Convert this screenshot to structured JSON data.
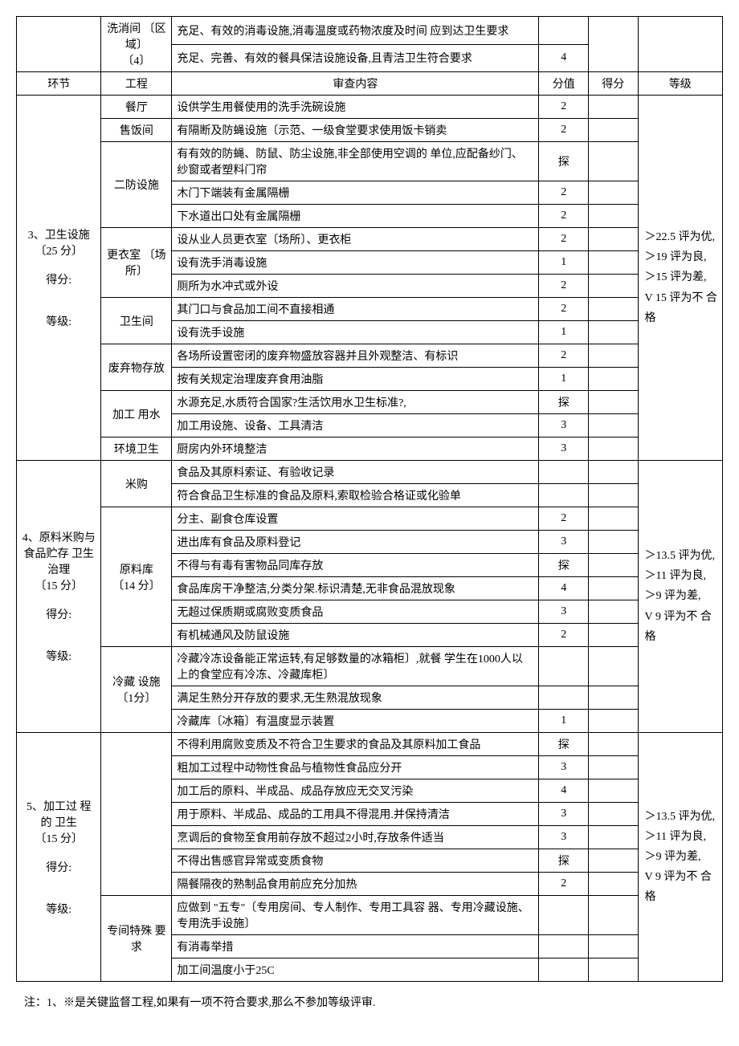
{
  "header": {
    "section": "环节",
    "item": "工程",
    "content": "审查内容",
    "score": "分值",
    "got": "得分",
    "grade": "等级"
  },
  "pre_rows": [
    {
      "item": "洗消间 〔区域〕\n〔4〕",
      "content": "充足、有效的消毒设施,消毒温度或药物浓度及时间 应到达卫生要求",
      "score": ""
    },
    {
      "content": "充足、完善、有效的餐具保洁设施设备,且青洁卫生符合要求",
      "score": "4"
    }
  ],
  "sections": [
    {
      "label": "3、卫生设施\n〔25 分〕\n\n得分:\n\n\n等级:",
      "grade": "＞22.5 评为优,\n＞19 评为良,\n＞15 评为差,\nV 15 评为不 合格",
      "groups": [
        {
          "item": "餐厅",
          "rows": [
            {
              "content": "设供学生用餐使用的洗手洗碗设施",
              "score": "2"
            }
          ]
        },
        {
          "item": "售饭间",
          "rows": [
            {
              "content": "有隔断及防蝇设施〔示范、一级食堂要求使用饭卡销卖",
              "score": "2"
            }
          ]
        },
        {
          "item": "二防设施",
          "rows": [
            {
              "content": "有有效的防蝇、防鼠、防尘设施,非全部使用空调的 单位,应配备纱门、纱窗或者塑料门帘",
              "score": "探"
            },
            {
              "content": "木门下端装有金属隔栅",
              "score": "2"
            },
            {
              "content": "下水道出口处有金属隔栅",
              "score": "2"
            }
          ]
        },
        {
          "item": "更衣室 〔场所〕",
          "rows": [
            {
              "content": "设从业人员更衣室〔场所〕、更衣柜",
              "score": "2"
            },
            {
              "content": "设有洗手消毒设施",
              "score": "1"
            },
            {
              "content": "厕所为水冲式或外设",
              "score": "2"
            }
          ]
        },
        {
          "item": "卫生间",
          "rows": [
            {
              "content": "其门口与食品加工间不直接相通",
              "score": "2"
            },
            {
              "content": "设有洗手设施",
              "score": "1"
            }
          ]
        },
        {
          "item": "废弃物存放",
          "rows": [
            {
              "content": "各场所设置密闭的废弃物盛放容器并且外观整洁、有标识",
              "score": "2"
            },
            {
              "content": "按有关规定治理废弃食用油脂",
              "score": "1"
            }
          ]
        },
        {
          "item": "加工 用水",
          "rows": [
            {
              "content": "水源充足,水质符合国家?生活饮用水卫生标准?,",
              "score": "探"
            },
            {
              "content": "加工用设施、设备、工具清洁",
              "score": "3"
            }
          ]
        },
        {
          "item": "环境卫生",
          "rows": [
            {
              "content": "厨房内外环境整洁",
              "score": "3"
            }
          ]
        }
      ]
    },
    {
      "label": "4、原料米购与 食品贮存 卫生治理\n〔15 分〕\n\n得分:\n\n\n等级:",
      "grade": "＞13.5 评为优,\n＞11 评为良,\n＞9 评为差,\nV 9 评为不 合格",
      "groups": [
        {
          "item": "米购",
          "rows": [
            {
              "content": "食品及其原料索证、有验收记录",
              "score": ""
            },
            {
              "content": "符合食品卫生标准的食品及原料,索取检验合格证或化验单",
              "score": ""
            }
          ]
        },
        {
          "item": "原料库\n〔14 分〕",
          "rows": [
            {
              "content": "分主、副食仓库设置",
              "score": "2"
            },
            {
              "content": "进出库有食品及原料登记",
              "score": "3"
            },
            {
              "content": "不得与有毒有害物品同库存放",
              "score": "探"
            },
            {
              "content": "食品库房干净整洁,分类分架.标识清楚,无非食品混放现象",
              "score": "4"
            },
            {
              "content": "无超过保质期或腐败变质食品",
              "score": "3"
            },
            {
              "content": "有机械通风及防鼠设施",
              "score": "2"
            }
          ]
        },
        {
          "item": "冷藏 设施\n〔1分〕",
          "rows": [
            {
              "content": "冷藏冷冻设备能正常运转,有足够数量的冰箱柜〕,就餐 学生在1000人以上的食堂应有冷冻、冷藏库柜〕",
              "score": ""
            },
            {
              "content": "满足生熟分开存放的要求,无生熟混放现象",
              "score": ""
            },
            {
              "content": "冷藏库〔冰箱〕有温度显示装置",
              "score": "1"
            }
          ]
        }
      ]
    },
    {
      "label": "5、加工过 程的 卫生\n〔15 分〕\n\n得分:\n\n\n等级:",
      "grade": "＞13.5 评为优,\n＞11 评为良,\n＞9 评为差,\nV 9 评为不 合格",
      "groups": [
        {
          "item": "",
          "rows": [
            {
              "content": "不得利用腐败变质及不符合卫生要求的食品及其原料加工食品",
              "score": "探"
            },
            {
              "content": "粗加工过程中动物性食品与植物性食品应分开",
              "score": "3"
            },
            {
              "content": "加工后的原料、半成品、成品存放应无交叉污染",
              "score": "4"
            },
            {
              "content": "用于原料、半成品、成品的工用具不得混用.并保持清洁",
              "score": "3"
            },
            {
              "content": "烹调后的食物至食用前存放不超过2小时,存放条件适当",
              "score": "3"
            },
            {
              "content": "不得出售感官异常或变质食物",
              "score": "探"
            },
            {
              "content": "隔餐隔夜的熟制品食用前应充分加热",
              "score": "2"
            }
          ]
        },
        {
          "item": "专间特殊 要求",
          "rows": [
            {
              "content": "应做到 \"五专\"〔专用房间、专人制作、专用工具容 器、专用冷藏设施、专用洗手设施〕",
              "score": ""
            },
            {
              "content": "有消毒举措",
              "score": ""
            },
            {
              "content": "加工间温度小于25C",
              "score": ""
            }
          ]
        }
      ]
    }
  ],
  "note": "注：1、※是关键监督工程,如果有一项不符合要求,那么不参加等级评审."
}
